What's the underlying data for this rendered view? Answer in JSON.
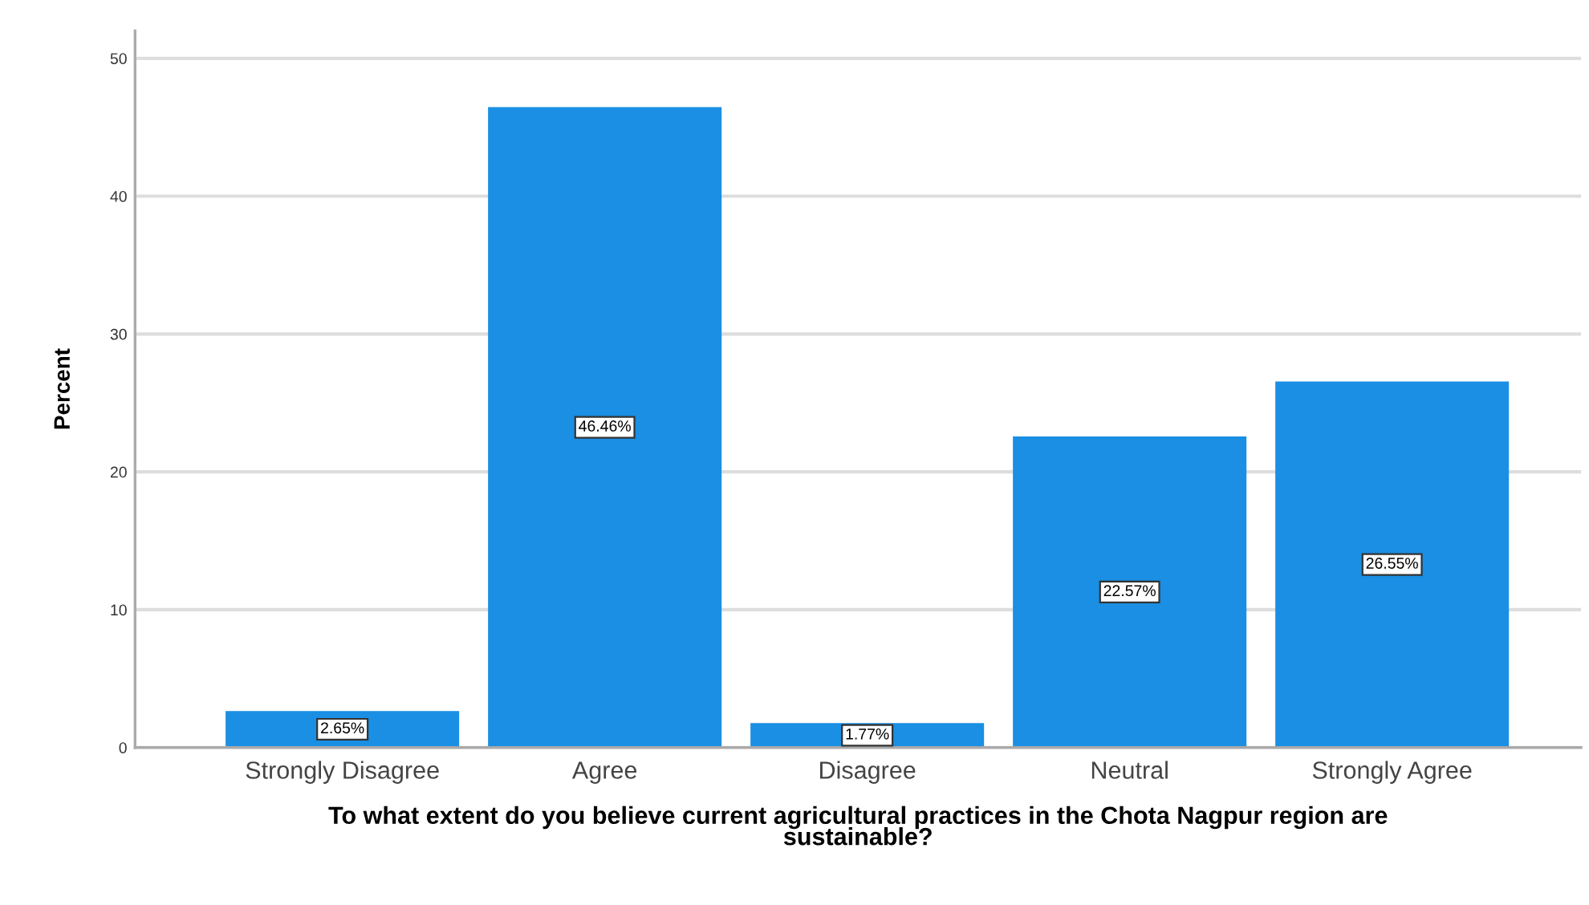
{
  "chart_data": {
    "type": "bar",
    "xlabel": "To what extent do you believe current agricultural practices in the Chota Nagpur region are\nsustainable?",
    "ylabel": "Percent",
    "categories": [
      "Strongly Disagree",
      "Agree",
      "Disagree",
      "Neutral",
      "Strongly Agree"
    ],
    "values": [
      2.65,
      46.46,
      1.77,
      22.57,
      26.55
    ],
    "value_labels": [
      "2.65%",
      "46.46%",
      "1.77%",
      "22.57%",
      "26.55%"
    ],
    "color": "#1a8fe3",
    "ylim": [
      0,
      52
    ],
    "yticks": [
      0,
      10,
      20,
      30,
      40,
      50
    ],
    "grid": "y"
  }
}
